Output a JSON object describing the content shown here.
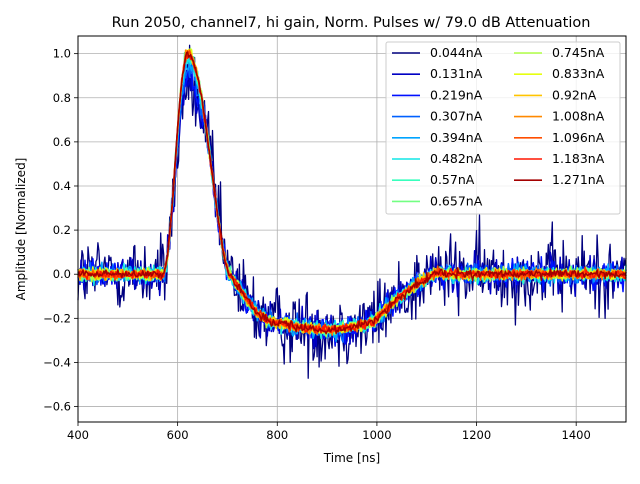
{
  "chart_data": {
    "type": "line",
    "title": "Run 2050, channel7, hi gain, Norm. Pulses w/ 79.0 dB Attenuation",
    "xlabel": "Time [ns]",
    "ylabel": "Amplitude [Normalized]",
    "xlim": [
      400,
      1500
    ],
    "ylim": [
      -0.67,
      1.08
    ],
    "xticks": [
      400,
      600,
      800,
      1000,
      1200,
      1400
    ],
    "yticks": [
      -0.6,
      -0.4,
      -0.2,
      0.0,
      0.2,
      0.4,
      0.6,
      0.8,
      1.0
    ],
    "grid": true,
    "legend_position": "top-right",
    "legend_columns": 2,
    "pulse_shape": {
      "baseline_until": 570,
      "peak_x": 620,
      "peak_value": 1.0,
      "zero_crossing": 705,
      "trough_x": 900,
      "trough_value": -0.25,
      "recovery_end": 1130
    },
    "series": [
      {
        "name": "0.044nA",
        "color": "#00007f",
        "noise_amplitude": 0.2
      },
      {
        "name": "0.131nA",
        "color": "#0000c4",
        "noise_amplitude": 0.09
      },
      {
        "name": "0.219nA",
        "color": "#0010ff",
        "noise_amplitude": 0.065
      },
      {
        "name": "0.307nA",
        "color": "#0060ff",
        "noise_amplitude": 0.05
      },
      {
        "name": "0.394nA",
        "color": "#00a4ff",
        "noise_amplitude": 0.045
      },
      {
        "name": "0.482nA",
        "color": "#10e6e6",
        "noise_amplitude": 0.04
      },
      {
        "name": "0.57nA",
        "color": "#39ffbd",
        "noise_amplitude": 0.035
      },
      {
        "name": "0.657nA",
        "color": "#73ff83",
        "noise_amplitude": 0.032
      },
      {
        "name": "0.745nA",
        "color": "#b0ff47",
        "noise_amplitude": 0.03
      },
      {
        "name": "0.833nA",
        "color": "#e6ff10",
        "noise_amplitude": 0.028
      },
      {
        "name": "0.92nA",
        "color": "#ffc400",
        "noise_amplitude": 0.026
      },
      {
        "name": "1.008nA",
        "color": "#ff8900",
        "noise_amplitude": 0.025
      },
      {
        "name": "1.096nA",
        "color": "#ff4e00",
        "noise_amplitude": 0.024
      },
      {
        "name": "1.183nA",
        "color": "#ff1600",
        "noise_amplitude": 0.023
      },
      {
        "name": "1.271nA",
        "color": "#a40000",
        "noise_amplitude": 0.022
      }
    ]
  }
}
